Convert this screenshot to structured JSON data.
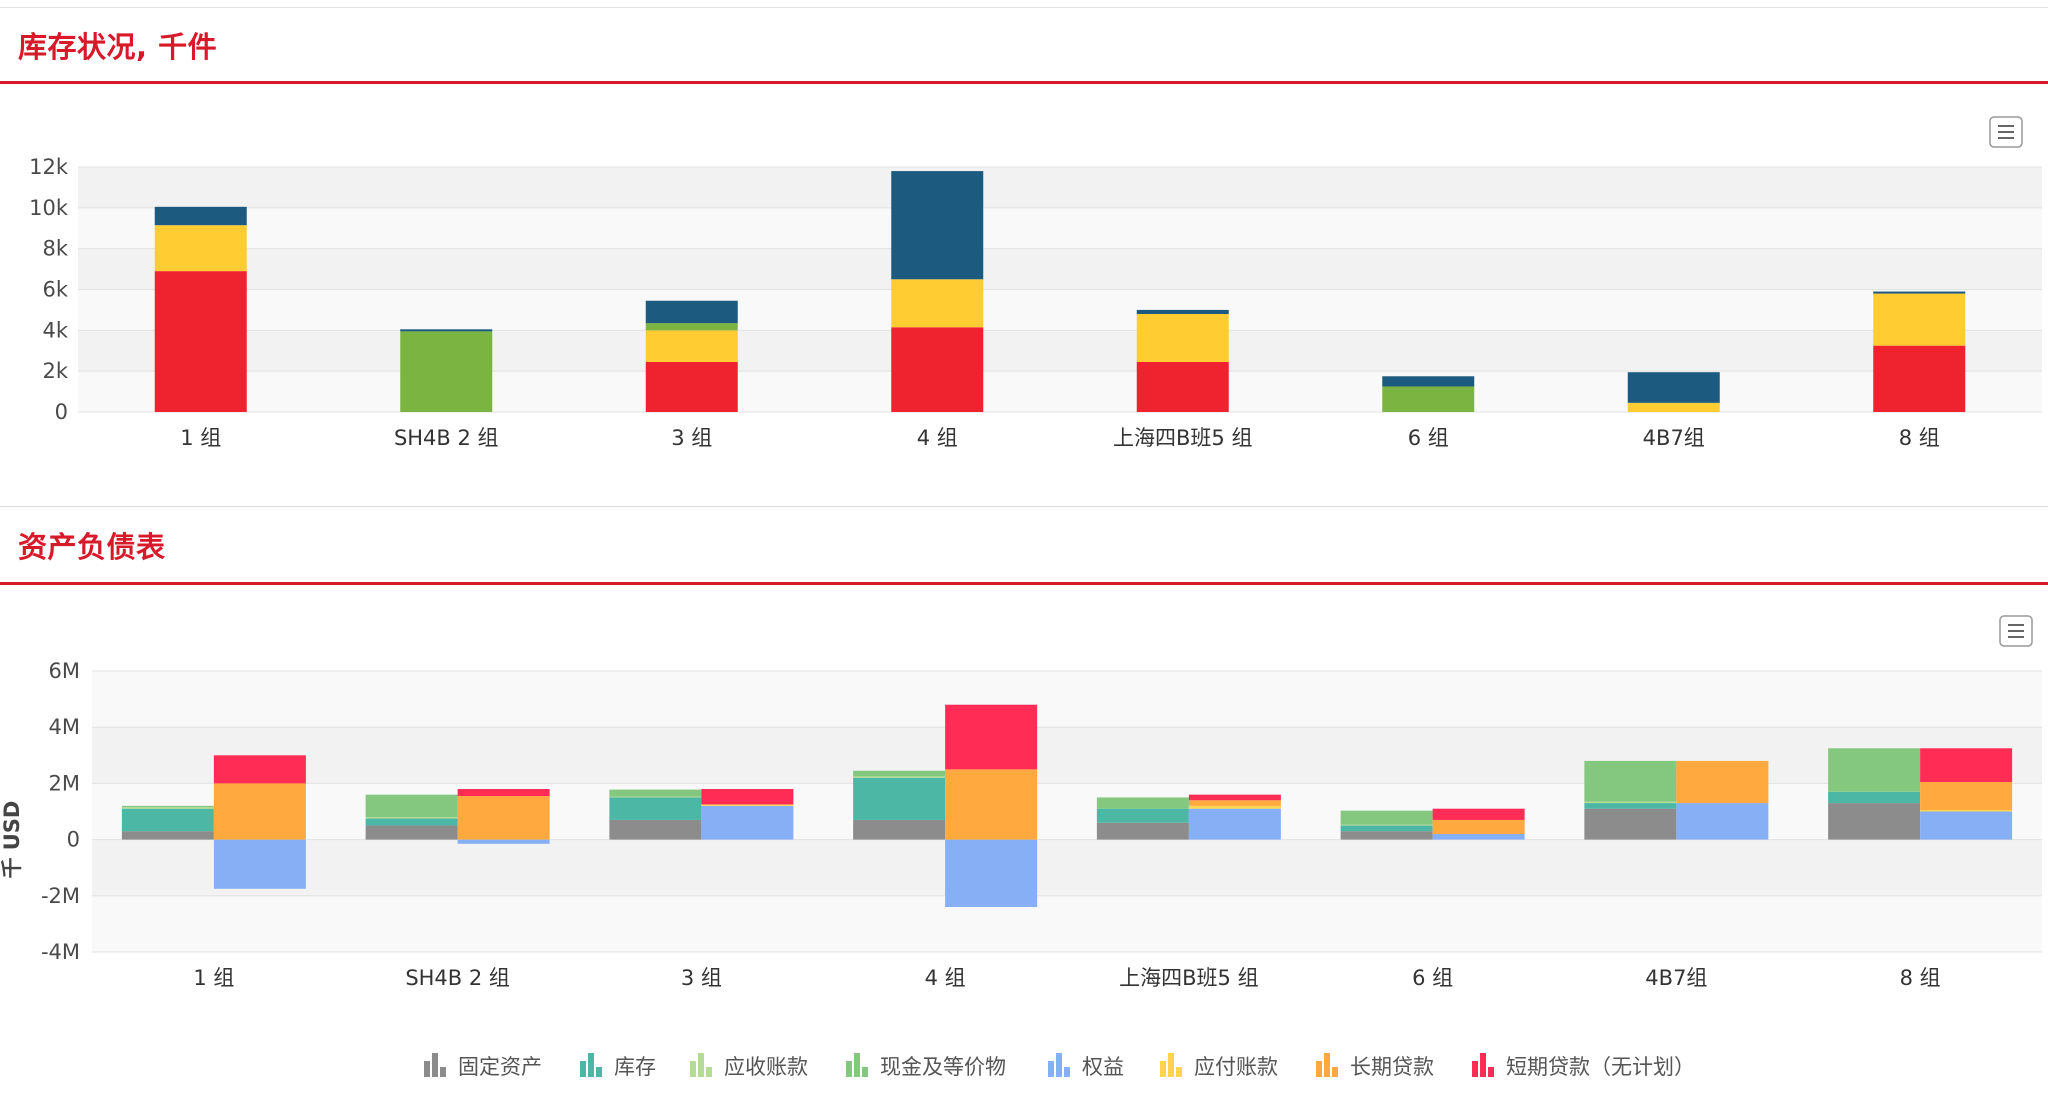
{
  "sections": {
    "inventory_title": "库存状况, 千件",
    "balance_title": "资产负债表"
  },
  "colors": {
    "accent": "#d7192a",
    "inv": [
      "#ef232f",
      "#ffcd32",
      "#7cb442",
      "#1c5a7f"
    ],
    "bs": {
      "fixed": "#8c8c8c",
      "stock": "#4cb7a5",
      "recv": "#b5dc93",
      "cash": "#84c77f",
      "equity": "#87aff5",
      "payable": "#ffd54f",
      "longloan": "#ffa93f",
      "shortloan": "#ff2d55"
    }
  },
  "chart_data": [
    {
      "type": "bar",
      "stacked": true,
      "categories": [
        "1 组",
        "SH4B 2 组",
        "3 组",
        "4 组",
        "上海四B班5 组",
        "6 组",
        "4B7组",
        "8 组"
      ],
      "ylim": [
        0,
        12000
      ],
      "yticks": [
        "0",
        "2k",
        "4k",
        "6k",
        "8k",
        "10k",
        "12k"
      ],
      "ytick_values": [
        0,
        2000,
        4000,
        6000,
        8000,
        10000,
        12000
      ],
      "series": [
        {
          "values": [
            6900,
            0,
            2450,
            4150,
            2450,
            0,
            0,
            3250
          ]
        },
        {
          "values": [
            2250,
            0,
            1550,
            2350,
            2350,
            0,
            450,
            2550
          ]
        },
        {
          "values": [
            0,
            3950,
            350,
            0,
            0,
            1250,
            0,
            0
          ]
        },
        {
          "values": [
            900,
            100,
            1100,
            5300,
            200,
            500,
            1500,
            100
          ]
        }
      ],
      "grid": true
    },
    {
      "type": "bar",
      "stacked": true,
      "grouped": true,
      "categories": [
        "1 组",
        "SH4B 2 组",
        "3 组",
        "4 组",
        "上海四B班5 组",
        "6 组",
        "4B7组",
        "8 组"
      ],
      "ylabel": "千 USD",
      "ylim": [
        -4000000,
        6000000
      ],
      "yticks": [
        "-4M",
        "-2M",
        "0",
        "2M",
        "4M",
        "6M"
      ],
      "ytick_values": [
        -4000000,
        -2000000,
        0,
        2000000,
        4000000,
        6000000
      ],
      "assets": [
        {
          "name": "固定资产",
          "values": [
            300000,
            500000,
            700000,
            700000,
            600000,
            300000,
            1100000,
            1300000
          ]
        },
        {
          "name": "库存",
          "values": [
            800000,
            250000,
            800000,
            1500000,
            500000,
            200000,
            200000,
            400000
          ]
        },
        {
          "name": "应收账款",
          "values": [
            50000,
            50000,
            30000,
            50000,
            0,
            30000,
            50000,
            0
          ]
        },
        {
          "name": "现金及等价物",
          "values": [
            50000,
            800000,
            250000,
            200000,
            400000,
            500000,
            1450000,
            1550000
          ]
        }
      ],
      "liabilities": [
        {
          "name": "权益",
          "values": [
            -1750000,
            -150000,
            1200000,
            -2400000,
            1100000,
            200000,
            1300000,
            1000000
          ]
        },
        {
          "name": "应付账款",
          "values": [
            0,
            0,
            50000,
            0,
            100000,
            0,
            0,
            50000
          ]
        },
        {
          "name": "长期贷款",
          "values": [
            2000000,
            1550000,
            0,
            2500000,
            200000,
            500000,
            1500000,
            1000000
          ]
        },
        {
          "name": "短期贷款（无计划）",
          "values": [
            1000000,
            250000,
            550000,
            2300000,
            200000,
            400000,
            0,
            1200000
          ]
        }
      ],
      "legend_position": "bottom",
      "grid": true
    }
  ],
  "legend": [
    {
      "label": "固定资产",
      "color": "#8c8c8c"
    },
    {
      "label": "库存",
      "color": "#4cb7a5"
    },
    {
      "label": "应收账款",
      "color": "#b5dc93"
    },
    {
      "label": "现金及等价物",
      "color": "#84c77f"
    },
    {
      "label": "权益",
      "color": "#87aff5"
    },
    {
      "label": "应付账款",
      "color": "#ffd54f"
    },
    {
      "label": "长期贷款",
      "color": "#ffa93f"
    },
    {
      "label": "短期贷款（无计划）",
      "color": "#ff2d55"
    }
  ],
  "menu_icon": "hamburger-menu-icon"
}
